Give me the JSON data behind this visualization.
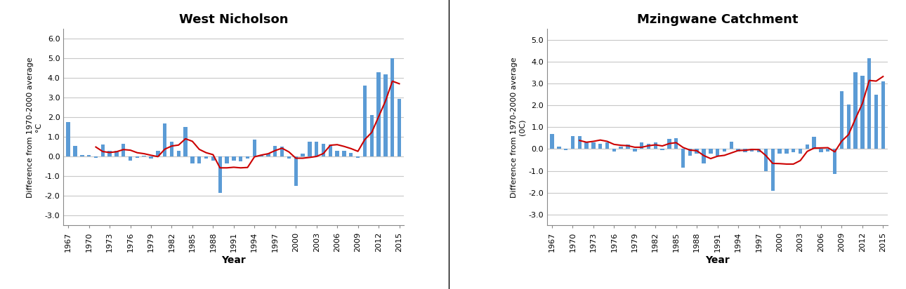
{
  "years": [
    1967,
    1968,
    1969,
    1970,
    1971,
    1972,
    1973,
    1974,
    1975,
    1976,
    1977,
    1978,
    1979,
    1980,
    1981,
    1982,
    1983,
    1984,
    1985,
    1986,
    1987,
    1988,
    1989,
    1990,
    1991,
    1992,
    1993,
    1994,
    1995,
    1996,
    1997,
    1998,
    1999,
    2000,
    2001,
    2002,
    2003,
    2004,
    2005,
    2006,
    2007,
    2008,
    2009,
    2010,
    2011,
    2012,
    2013,
    2014,
    2015
  ],
  "wn_values": [
    1.75,
    0.55,
    0.1,
    0.1,
    -0.05,
    0.6,
    0.3,
    0.3,
    0.65,
    -0.2,
    -0.05,
    0.05,
    -0.1,
    0.3,
    1.7,
    0.75,
    0.3,
    1.5,
    -0.35,
    -0.35,
    -0.1,
    -0.2,
    -1.85,
    -0.35,
    -0.2,
    -0.25,
    -0.1,
    0.85,
    0.1,
    0.15,
    0.55,
    0.5,
    -0.1,
    -1.5,
    0.15,
    0.75,
    0.75,
    0.65,
    0.6,
    0.3,
    0.3,
    0.2,
    -0.05,
    3.6,
    2.1,
    4.3,
    4.2,
    5.0,
    2.95
  ],
  "mc_values": [
    0.7,
    0.1,
    -0.05,
    0.6,
    0.6,
    0.3,
    0.3,
    0.25,
    0.3,
    -0.1,
    0.1,
    0.2,
    -0.1,
    0.3,
    0.25,
    0.3,
    -0.05,
    0.45,
    0.5,
    -0.85,
    -0.3,
    -0.2,
    -0.65,
    -0.2,
    -0.3,
    -0.1,
    0.35,
    -0.1,
    -0.15,
    -0.1,
    -0.15,
    -1.0,
    -1.9,
    -0.2,
    -0.2,
    -0.15,
    -0.2,
    0.2,
    0.55,
    -0.15,
    -0.1,
    -1.15,
    2.65,
    2.05,
    3.5,
    3.35,
    4.15,
    2.5,
    3.1
  ],
  "wn_title": "West Nicholson",
  "mc_title": "Mzingwane Catchment",
  "ylabel_left": "Difference from 1970-2000 average\n°C",
  "ylabel_right": "Difference from 1970-2000 average\n(0C)",
  "xlabel": "Year",
  "wn_ylim": [
    -3.5,
    6.5
  ],
  "mc_ylim": [
    -3.5,
    5.5
  ],
  "wn_yticks": [
    -3.0,
    -2.0,
    -1.0,
    0.0,
    1.0,
    2.0,
    3.0,
    4.0,
    5.0,
    6.0
  ],
  "mc_yticks": [
    -3.0,
    -2.0,
    -1.0,
    0.0,
    1.0,
    2.0,
    3.0,
    4.0,
    5.0
  ],
  "bar_color": "#5b9bd5",
  "line_color": "#cc0000",
  "background_color": "#ffffff",
  "grid_color": "#c8c8c8",
  "title_fontsize": 13,
  "label_fontsize": 8,
  "tick_fontsize": 8
}
